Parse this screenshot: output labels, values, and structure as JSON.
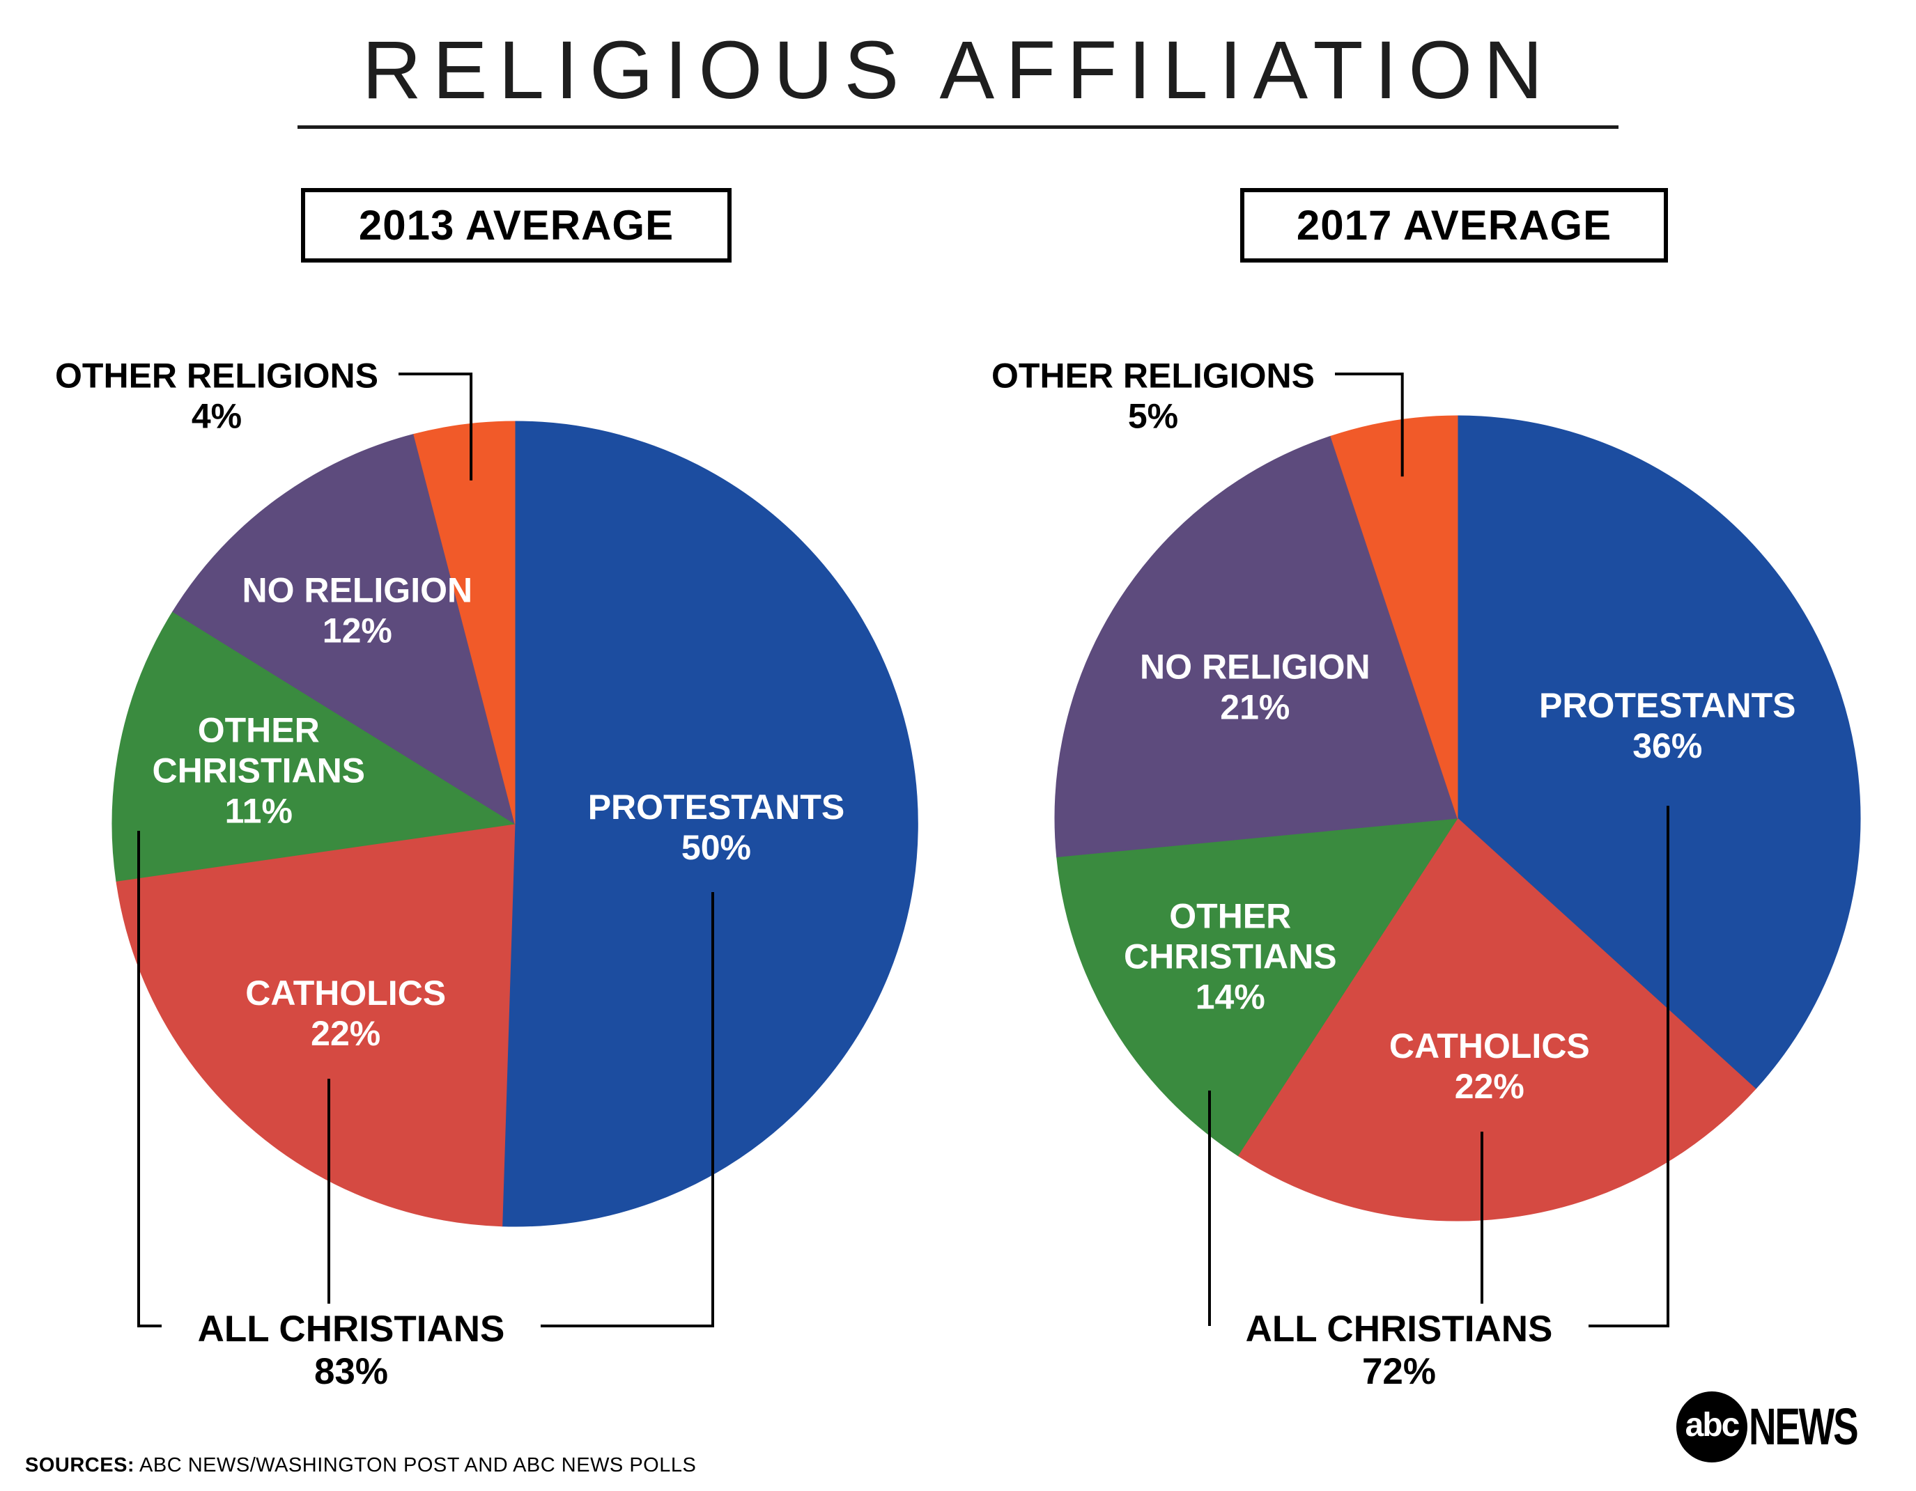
{
  "page": {
    "title": "RELIGIOUS AFFILIATION",
    "sources_label": "SOURCES:",
    "sources_text": "ABC NEWS/WASHINGTON POST AND ABC NEWS POLLS",
    "logo_abc": "abc",
    "logo_news": "NEWS"
  },
  "colors": {
    "protestants_blue": "#1c4da0",
    "catholics_red": "#d54a42",
    "other_christians_green": "#3a8b3f",
    "no_religion_purple": "#5d4b7d",
    "other_religions_orange": "#f15a29",
    "text_black": "#000000",
    "label_white": "#ffffff"
  },
  "chart_data": [
    {
      "type": "pie",
      "title": "2013 AVERAGE",
      "units": "percent",
      "start_angle": "12-oclock",
      "direction": "clockwise",
      "slices": [
        {
          "label": "PROTESTANTS",
          "value": 50,
          "color": "#1c4da0",
          "text_lines": [
            "PROTESTANTS",
            "50%"
          ],
          "placement": "inside"
        },
        {
          "label": "CATHOLICS",
          "value": 22,
          "color": "#d54a42",
          "text_lines": [
            "CATHOLICS",
            "22%"
          ],
          "placement": "inside"
        },
        {
          "label": "OTHER CHRISTIANS",
          "value": 11,
          "color": "#3a8b3f",
          "text_lines": [
            "OTHER",
            "CHRISTIANS",
            "11%"
          ],
          "placement": "inside"
        },
        {
          "label": "NO RELIGION",
          "value": 12,
          "color": "#5d4b7d",
          "text_lines": [
            "NO RELIGION",
            "12%"
          ],
          "placement": "inside"
        },
        {
          "label": "OTHER RELIGIONS",
          "value": 4,
          "color": "#f15a29",
          "text_lines": [
            "OTHER RELIGIONS",
            "4%"
          ],
          "placement": "callout"
        }
      ],
      "bottom_callout": {
        "label": "ALL CHRISTIANS",
        "value": 83,
        "text_lines": [
          "ALL CHRISTIANS",
          "83%"
        ]
      }
    },
    {
      "type": "pie",
      "title": "2017 AVERAGE",
      "units": "percent",
      "start_angle": "12-oclock",
      "direction": "clockwise",
      "slices": [
        {
          "label": "PROTESTANTS",
          "value": 36,
          "color": "#1c4da0",
          "text_lines": [
            "PROTESTANTS",
            "36%"
          ],
          "placement": "inside"
        },
        {
          "label": "CATHOLICS",
          "value": 22,
          "color": "#d54a42",
          "text_lines": [
            "CATHOLICS",
            "22%"
          ],
          "placement": "inside"
        },
        {
          "label": "OTHER CHRISTIANS",
          "value": 14,
          "color": "#3a8b3f",
          "text_lines": [
            "OTHER",
            "CHRISTIANS",
            "14%"
          ],
          "placement": "inside"
        },
        {
          "label": "NO RELIGION",
          "value": 21,
          "color": "#5d4b7d",
          "text_lines": [
            "NO RELIGION",
            "21%"
          ],
          "placement": "inside"
        },
        {
          "label": "OTHER RELIGIONS",
          "value": 5,
          "color": "#f15a29",
          "text_lines": [
            "OTHER RELIGIONS",
            "5%"
          ],
          "placement": "callout"
        }
      ],
      "bottom_callout": {
        "label": "ALL CHRISTIANS",
        "value": 72,
        "text_lines": [
          "ALL CHRISTIANS",
          "72%"
        ]
      }
    }
  ]
}
